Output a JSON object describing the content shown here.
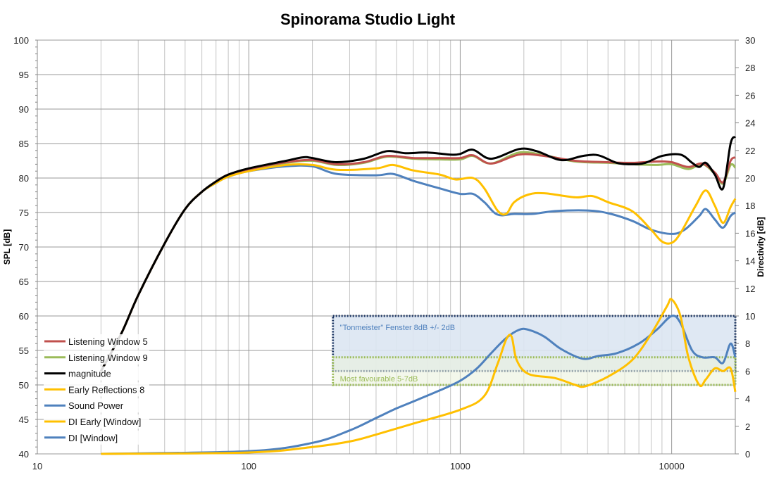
{
  "chart_data": {
    "type": "line",
    "title": "Spinorama Studio Light",
    "xlabel": "",
    "ylabel": "SPL [dB]",
    "y2label": "Directivity [dB]",
    "xscale": "log",
    "xlim": [
      10,
      20000
    ],
    "ylim": [
      40,
      100
    ],
    "y2lim": [
      0,
      30
    ],
    "grid": true,
    "legend_position": "bottom-left",
    "xticks": [
      "10",
      "100",
      "1000",
      "10000"
    ],
    "yticks": [
      "40",
      "45",
      "50",
      "55",
      "60",
      "65",
      "70",
      "75",
      "80",
      "85",
      "90",
      "95",
      "100"
    ],
    "y2ticks": [
      "0",
      "2",
      "4",
      "6",
      "8",
      "10",
      "12",
      "14",
      "16",
      "18",
      "20",
      "22",
      "24",
      "26",
      "28",
      "30"
    ],
    "series": [
      {
        "name": "Listening Window 5",
        "axis": "left",
        "color": "#c0504d",
        "points": [
          [
            20,
            52
          ],
          [
            25,
            57.5
          ],
          [
            30,
            63
          ],
          [
            40,
            70.5
          ],
          [
            50,
            75.5
          ],
          [
            60,
            78
          ],
          [
            70,
            79.5
          ],
          [
            80,
            80.5
          ],
          [
            100,
            81.3
          ],
          [
            150,
            82.3
          ],
          [
            200,
            82.6
          ],
          [
            260,
            82
          ],
          [
            350,
            82.3
          ],
          [
            450,
            83.2
          ],
          [
            600,
            82.9
          ],
          [
            800,
            82.9
          ],
          [
            1000,
            82.9
          ],
          [
            1150,
            83.3
          ],
          [
            1400,
            82.1
          ],
          [
            1900,
            83.4
          ],
          [
            2500,
            83.2
          ],
          [
            3500,
            82.5
          ],
          [
            5000,
            82.3
          ],
          [
            6500,
            82.2
          ],
          [
            8500,
            82.4
          ],
          [
            10000,
            82.3
          ],
          [
            12000,
            81.6
          ],
          [
            14000,
            82.1
          ],
          [
            16000,
            80.8
          ],
          [
            17500,
            79.4
          ],
          [
            19000,
            82.5
          ],
          [
            20000,
            83
          ]
        ]
      },
      {
        "name": "Listening Window 9",
        "axis": "left",
        "color": "#9bbb59",
        "points": [
          [
            20,
            52
          ],
          [
            25,
            57.5
          ],
          [
            30,
            63
          ],
          [
            40,
            70.5
          ],
          [
            50,
            75.5
          ],
          [
            60,
            78
          ],
          [
            70,
            79.5
          ],
          [
            80,
            80.5
          ],
          [
            100,
            81.3
          ],
          [
            150,
            82.2
          ],
          [
            200,
            82.5
          ],
          [
            260,
            81.9
          ],
          [
            350,
            82.2
          ],
          [
            450,
            83.1
          ],
          [
            600,
            82.8
          ],
          [
            800,
            82.7
          ],
          [
            1000,
            82.7
          ],
          [
            1150,
            83.2
          ],
          [
            1400,
            82.1
          ],
          [
            1900,
            83.7
          ],
          [
            2500,
            83.3
          ],
          [
            3500,
            82.4
          ],
          [
            5000,
            82.2
          ],
          [
            6500,
            82
          ],
          [
            8500,
            81.9
          ],
          [
            10000,
            82
          ],
          [
            12000,
            81.3
          ],
          [
            14000,
            82
          ],
          [
            16000,
            80.6
          ],
          [
            17500,
            79.2
          ],
          [
            19000,
            81.9
          ],
          [
            20000,
            81.5
          ]
        ]
      },
      {
        "name": "magnitude",
        "axis": "left",
        "color": "#000000",
        "points": [
          [
            20,
            52
          ],
          [
            25,
            57.5
          ],
          [
            30,
            63
          ],
          [
            40,
            70.5
          ],
          [
            50,
            75.5
          ],
          [
            60,
            78
          ],
          [
            70,
            79.5
          ],
          [
            80,
            80.5
          ],
          [
            100,
            81.4
          ],
          [
            150,
            82.5
          ],
          [
            180,
            83
          ],
          [
            200,
            82.9
          ],
          [
            260,
            82.3
          ],
          [
            350,
            82.8
          ],
          [
            450,
            83.9
          ],
          [
            550,
            83.6
          ],
          [
            700,
            83.7
          ],
          [
            900,
            83.4
          ],
          [
            1000,
            83.5
          ],
          [
            1150,
            84.1
          ],
          [
            1400,
            82.8
          ],
          [
            1900,
            84.2
          ],
          [
            2300,
            83.9
          ],
          [
            3000,
            82.6
          ],
          [
            3800,
            83.2
          ],
          [
            4500,
            83.3
          ],
          [
            5500,
            82.2
          ],
          [
            6500,
            82
          ],
          [
            7500,
            82.2
          ],
          [
            9000,
            83.2
          ],
          [
            11000,
            83.4
          ],
          [
            12500,
            82.2
          ],
          [
            13500,
            81.6
          ],
          [
            14500,
            82.2
          ],
          [
            16000,
            80.5
          ],
          [
            17500,
            78.5
          ],
          [
            19000,
            85
          ],
          [
            20000,
            86
          ]
        ]
      },
      {
        "name": "Early Reflections 8",
        "axis": "left",
        "color": "#ffc000",
        "points": [
          [
            20,
            52
          ],
          [
            25,
            57.5
          ],
          [
            30,
            63
          ],
          [
            40,
            70.5
          ],
          [
            50,
            75.5
          ],
          [
            60,
            78
          ],
          [
            70,
            79.3
          ],
          [
            80,
            80.2
          ],
          [
            100,
            81
          ],
          [
            150,
            81.9
          ],
          [
            200,
            81.9
          ],
          [
            260,
            81.2
          ],
          [
            400,
            81.4
          ],
          [
            480,
            81.9
          ],
          [
            600,
            81.1
          ],
          [
            800,
            80.5
          ],
          [
            950,
            79.8
          ],
          [
            1150,
            80
          ],
          [
            1300,
            78.5
          ],
          [
            1500,
            75.3
          ],
          [
            1650,
            74.8
          ],
          [
            1800,
            76.5
          ],
          [
            2100,
            77.6
          ],
          [
            2500,
            77.8
          ],
          [
            3500,
            77.2
          ],
          [
            4200,
            77.4
          ],
          [
            5000,
            76.5
          ],
          [
            6500,
            75.2
          ],
          [
            8000,
            72.5
          ],
          [
            9000,
            70.8
          ],
          [
            10000,
            70.6
          ],
          [
            11000,
            72
          ],
          [
            13000,
            76
          ],
          [
            14500,
            78.2
          ],
          [
            16000,
            76
          ],
          [
            17500,
            73.5
          ],
          [
            19000,
            75.8
          ],
          [
            20000,
            77
          ]
        ]
      },
      {
        "name": "Sound Power",
        "axis": "left",
        "color": "#4f81bd",
        "points": [
          [
            20,
            52
          ],
          [
            25,
            57.5
          ],
          [
            30,
            63
          ],
          [
            40,
            70.5
          ],
          [
            50,
            75.5
          ],
          [
            60,
            78
          ],
          [
            70,
            79.3
          ],
          [
            80,
            80.2
          ],
          [
            100,
            81
          ],
          [
            150,
            81.7
          ],
          [
            200,
            81.7
          ],
          [
            260,
            80.6
          ],
          [
            400,
            80.4
          ],
          [
            480,
            80.6
          ],
          [
            600,
            79.6
          ],
          [
            800,
            78.5
          ],
          [
            1000,
            77.7
          ],
          [
            1150,
            77.7
          ],
          [
            1300,
            76.5
          ],
          [
            1500,
            74.7
          ],
          [
            1800,
            74.8
          ],
          [
            2200,
            74.8
          ],
          [
            2800,
            75.2
          ],
          [
            4000,
            75.3
          ],
          [
            5000,
            74.9
          ],
          [
            6500,
            73.8
          ],
          [
            8000,
            72.5
          ],
          [
            10000,
            71.9
          ],
          [
            11500,
            72.5
          ],
          [
            13500,
            74.5
          ],
          [
            14500,
            75.5
          ],
          [
            16000,
            74
          ],
          [
            17500,
            72.8
          ],
          [
            19000,
            74.5
          ],
          [
            20000,
            75
          ]
        ]
      },
      {
        "name": "DI Early [Window]",
        "axis": "right",
        "color": "#ffc000",
        "points": [
          [
            20,
            0
          ],
          [
            100,
            0.1
          ],
          [
            200,
            0.5
          ],
          [
            300,
            0.9
          ],
          [
            400,
            1.4
          ],
          [
            600,
            2.2
          ],
          [
            1000,
            3.2
          ],
          [
            1300,
            4.2
          ],
          [
            1500,
            6.5
          ],
          [
            1650,
            8.3
          ],
          [
            1750,
            8.5
          ],
          [
            1850,
            6.8
          ],
          [
            2100,
            5.8
          ],
          [
            2800,
            5.5
          ],
          [
            3500,
            5
          ],
          [
            3900,
            4.9
          ],
          [
            5000,
            5.6
          ],
          [
            6500,
            6.8
          ],
          [
            8000,
            8.7
          ],
          [
            9500,
            10.7
          ],
          [
            10000,
            11.2
          ],
          [
            11000,
            10
          ],
          [
            12000,
            7
          ],
          [
            13500,
            5
          ],
          [
            14500,
            5.4
          ],
          [
            16000,
            6.2
          ],
          [
            17500,
            6
          ],
          [
            19000,
            6.2
          ],
          [
            20000,
            4.5
          ]
        ]
      },
      {
        "name": "DI [Window]",
        "axis": "right",
        "color": "#4f81bd",
        "points": [
          [
            20,
            0
          ],
          [
            100,
            0.2
          ],
          [
            200,
            0.8
          ],
          [
            300,
            1.7
          ],
          [
            400,
            2.6
          ],
          [
            500,
            3.3
          ],
          [
            600,
            3.8
          ],
          [
            800,
            4.6
          ],
          [
            1000,
            5.3
          ],
          [
            1200,
            6.2
          ],
          [
            1400,
            7.3
          ],
          [
            1650,
            8.4
          ],
          [
            1900,
            9
          ],
          [
            2100,
            9
          ],
          [
            2500,
            8.5
          ],
          [
            3000,
            7.6
          ],
          [
            3800,
            6.9
          ],
          [
            4500,
            7.1
          ],
          [
            5500,
            7.3
          ],
          [
            7000,
            8
          ],
          [
            8500,
            9
          ],
          [
            10000,
            10
          ],
          [
            11000,
            9.5
          ],
          [
            12500,
            7.5
          ],
          [
            14000,
            7
          ],
          [
            16000,
            7
          ],
          [
            17500,
            6.6
          ],
          [
            19000,
            8
          ],
          [
            20000,
            7
          ]
        ]
      }
    ],
    "annotations": [
      {
        "text": "\"Tonmeister\"  Fenster 8dB +/- 2dB",
        "axis": "right",
        "x_from": 250,
        "x_to": 20000,
        "y_from": 6,
        "y_to": 10,
        "color": "#1f3864",
        "fill": "#dce6f2",
        "text_color": "#4f81bd"
      },
      {
        "text": "Most favourable 5-7dB",
        "axis": "right",
        "x_from": 250,
        "x_to": 20000,
        "y_from": 5,
        "y_to": 7,
        "color": "#9bbb59",
        "fill": "#ebf1de",
        "text_color": "#9bbb59"
      }
    ]
  }
}
